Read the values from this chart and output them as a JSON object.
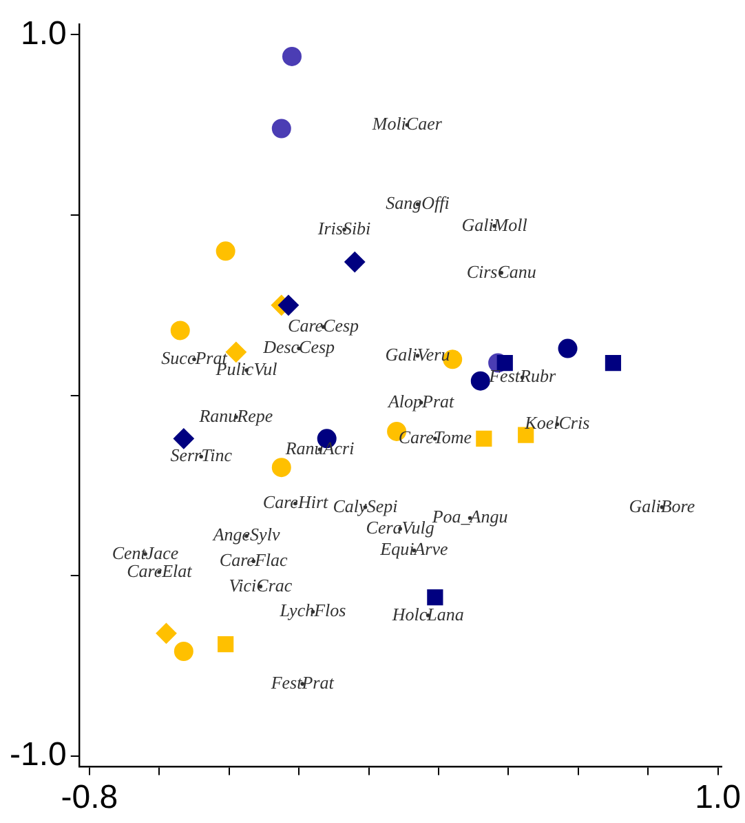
{
  "chart_data": {
    "type": "scatter",
    "xlim": [
      -0.83,
      1.01
    ],
    "ylim": [
      -1.03,
      1.03
    ],
    "xticks": [
      {
        "value": -0.8,
        "label": "-0.8"
      },
      {
        "value": -0.6,
        "label": null
      },
      {
        "value": -0.4,
        "label": null
      },
      {
        "value": -0.2,
        "label": null
      },
      {
        "value": 0,
        "label": null
      },
      {
        "value": 0.2,
        "label": null
      },
      {
        "value": 0.4,
        "label": null
      },
      {
        "value": 0.6,
        "label": null
      },
      {
        "value": 0.8,
        "label": null
      },
      {
        "value": 1,
        "label": "1.0"
      }
    ],
    "yticks": [
      {
        "value": -1,
        "label": "-1.0"
      },
      {
        "value": -0.5,
        "label": null
      },
      {
        "value": 0,
        "label": null
      },
      {
        "value": 0.5,
        "label": null
      },
      {
        "value": 1,
        "label": "1.0"
      }
    ],
    "grid": false,
    "legend": false,
    "series": [
      {
        "color": "#333333",
        "x": [
          0.11,
          0.14,
          0.36,
          -0.07,
          0.38,
          -0.13,
          -0.2,
          -0.5,
          -0.35,
          0.14,
          0.44,
          0.15,
          0.54,
          0.19,
          -0.38,
          -0.48,
          -0.14,
          -0.21,
          -0.01,
          0.29,
          0.84,
          0.09,
          -0.35,
          -0.64,
          0.13,
          -0.33,
          -0.6,
          -0.31,
          0.17,
          -0.16,
          -0.19
        ],
        "values": [
          0.75,
          0.53,
          0.47,
          0.46,
          0.34,
          0.19,
          0.13,
          0.1,
          0.07,
          0.11,
          0.05,
          -0.02,
          -0.08,
          -0.12,
          -0.06,
          -0.17,
          -0.15,
          -0.3,
          -0.31,
          -0.34,
          -0.31,
          -0.37,
          -0.39,
          -0.44,
          -0.43,
          -0.46,
          -0.49,
          -0.53,
          -0.61,
          -0.6,
          -0.8
        ],
        "value_labels": [
          "MoliCaer",
          "SangOffi",
          "GaliMoll",
          "IrisSibi",
          "CirsCanu",
          "CareCesp",
          "DescCesp",
          "SuccPrat",
          "PulicVul",
          "GaliVeru",
          "FestRubr",
          "AlopPrat",
          "KoelCris",
          "CareTome",
          "RanuRepe",
          "SerrTinc",
          "RanuAcri",
          "CareHirt",
          "CalySepi",
          "Poa_Angu",
          "GaliBore",
          "CeraVulg",
          "AngeSylv",
          "CentJace",
          "EquiArve",
          "CareFlac",
          "CareElat",
          "ViciCrac",
          "HolcLana",
          "LychFlos",
          "FestPrat"
        ]
      },
      {
        "color": "#4b3db4",
        "marker": "circle",
        "x": [
          -0.22,
          -0.25,
          0.37
        ],
        "values": [
          0.94,
          0.74,
          0.09
        ]
      },
      {
        "color": "#ffc000",
        "marker": "circle",
        "x": [
          -0.41,
          -0.54,
          -0.25
        ],
        "values": [
          0.4,
          0.18,
          -0.2
        ]
      },
      {
        "color": "#ffc000",
        "marker": "diamond",
        "x": [
          -0.25,
          -0.38,
          -0.58
        ],
        "values": [
          0.25,
          0.12,
          -0.66
        ]
      },
      {
        "color": "#000080",
        "marker": "diamond",
        "x": [
          -0.04,
          -0.23,
          -0.53
        ],
        "values": [
          0.37,
          0.25,
          -0.12
        ]
      },
      {
        "color": "#ffc000",
        "marker": "circle",
        "x": [
          0.24,
          0.08,
          -0.53
        ],
        "values": [
          0.1,
          -0.1,
          -0.71
        ]
      },
      {
        "color": "#000080",
        "marker": "circle",
        "x": [
          0.32,
          0.57,
          -0.12
        ],
        "values": [
          0.04,
          0.13,
          -0.12
        ]
      },
      {
        "color": "#000080",
        "marker": "square",
        "x": [
          0.39,
          0.7,
          0.19
        ],
        "values": [
          0.09,
          0.09,
          -0.56
        ]
      },
      {
        "color": "#ffc000",
        "marker": "square",
        "x": [
          0.33,
          0.45,
          -0.41
        ],
        "values": [
          -0.12,
          -0.11,
          -0.69
        ]
      }
    ]
  }
}
